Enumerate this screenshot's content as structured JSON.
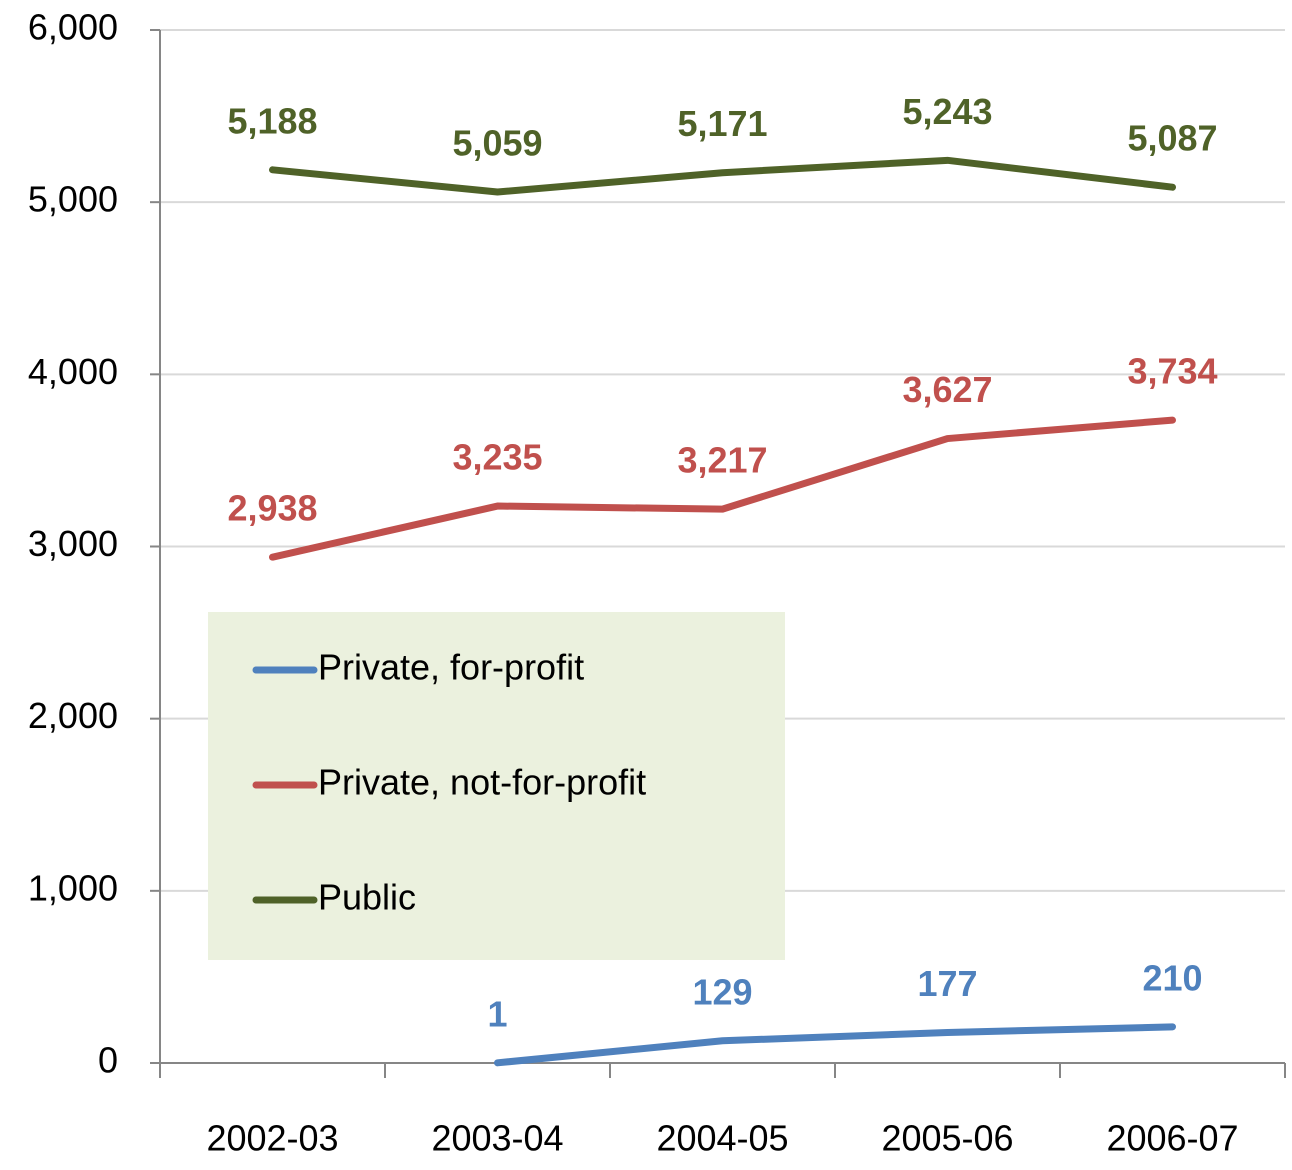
{
  "chart_data": {
    "type": "line",
    "categories": [
      "2002-03",
      "2003-04",
      "2004-05",
      "2005-06",
      "2006-07"
    ],
    "series": [
      {
        "name": "Private, for-profit",
        "color": "#4f81bd",
        "values": [
          null,
          1,
          129,
          177,
          210
        ],
        "value_labels": [
          null,
          "1",
          "129",
          "177",
          "210"
        ]
      },
      {
        "name": "Private, not-for-profit",
        "color": "#c0504d",
        "values": [
          2938,
          3235,
          3217,
          3627,
          3734
        ],
        "value_labels": [
          "2,938",
          "3,235",
          "3,217",
          "3,627",
          "3,734"
        ]
      },
      {
        "name": "Public",
        "color": "#4f6228",
        "values": [
          5188,
          5059,
          5171,
          5243,
          5087
        ],
        "value_labels": [
          "5,188",
          "5,059",
          "5,171",
          "5,243",
          "5,087"
        ]
      }
    ],
    "ylim": [
      0,
      6000
    ],
    "yticks": [
      0,
      {
        "value": 1000,
        "label": "1,000"
      },
      {
        "value": 2000,
        "label": "2,000"
      },
      {
        "value": 3000,
        "label": "3,000"
      },
      {
        "value": 4000,
        "label": "4,000"
      },
      {
        "value": 5000,
        "label": "5,000"
      },
      {
        "value": 6000,
        "label": "6,000"
      }
    ],
    "grid": true,
    "legend": "lower left"
  }
}
